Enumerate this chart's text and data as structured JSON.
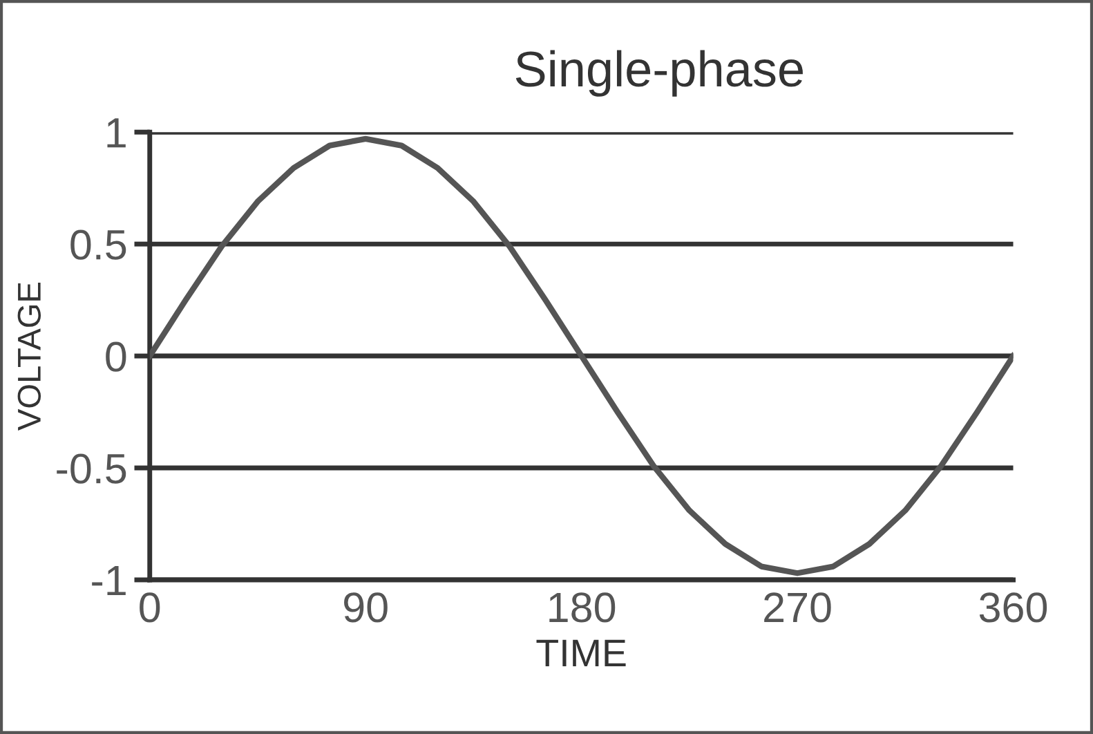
{
  "chart_data": {
    "type": "line",
    "title": "Single-phase",
    "xlabel": "TIME",
    "ylabel": "VOLTAGE",
    "x": [
      0,
      15,
      30,
      45,
      60,
      75,
      90,
      105,
      120,
      135,
      150,
      165,
      180,
      195,
      210,
      225,
      240,
      255,
      270,
      285,
      300,
      315,
      330,
      345,
      360
    ],
    "series": [
      {
        "color": "#555555",
        "values": [
          0,
          0.25,
          0.49,
          0.69,
          0.84,
          0.94,
          0.97,
          0.94,
          0.84,
          0.69,
          0.49,
          0.25,
          0,
          -0.25,
          -0.49,
          -0.69,
          -0.84,
          -0.94,
          -0.97,
          -0.94,
          -0.84,
          -0.69,
          -0.49,
          -0.25,
          0
        ]
      }
    ],
    "xlim": [
      0,
      360
    ],
    "ylim": [
      -1,
      1
    ],
    "xticks": [
      0,
      90,
      180,
      270,
      360
    ],
    "yticks": [
      -1,
      -0.5,
      0,
      0.5,
      1
    ],
    "grid": "y",
    "marker": "none",
    "line_style": "solid"
  }
}
